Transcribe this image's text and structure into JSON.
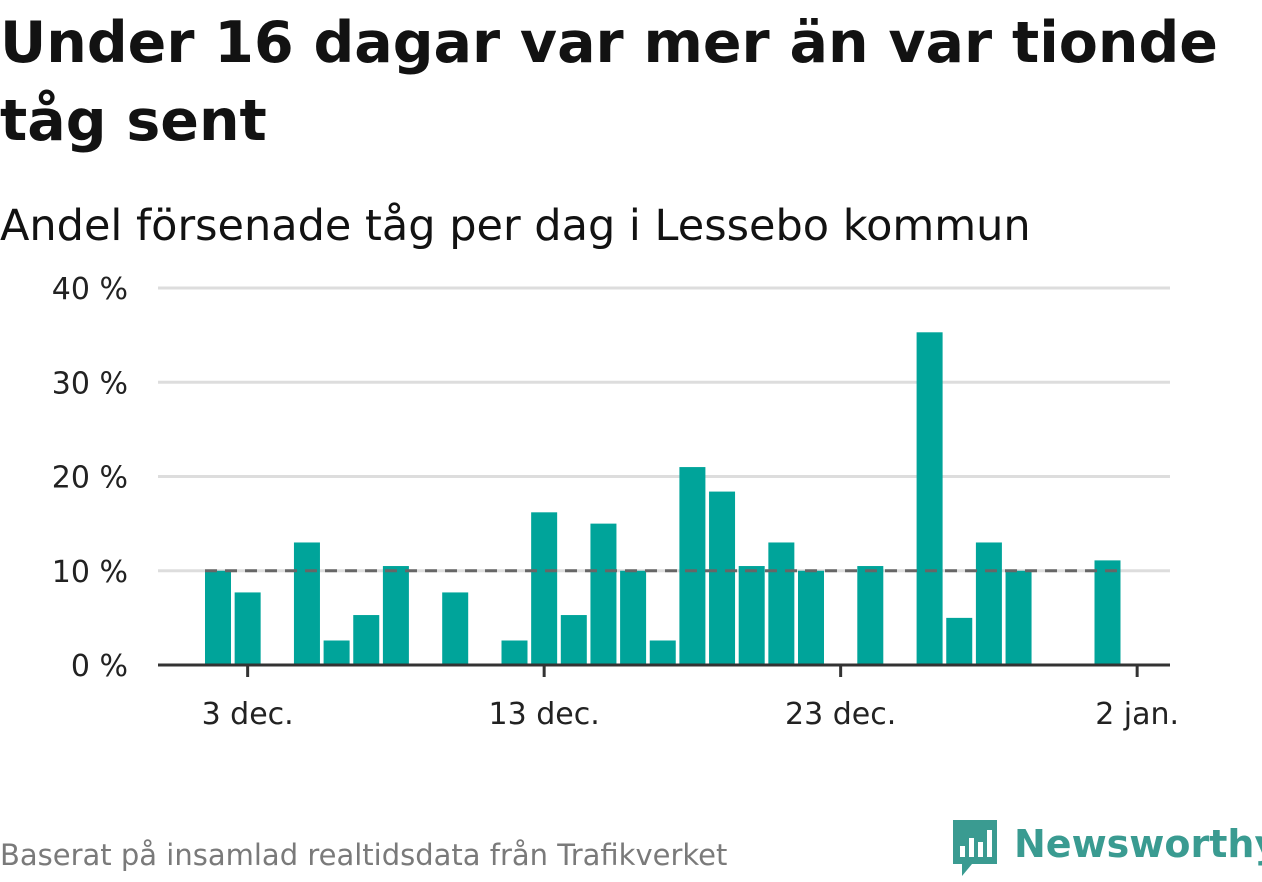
{
  "title": "Under 16 dagar var mer än var tionde tåg sent",
  "subtitle": "Andel försenade tåg per dag i Lessebo kommun",
  "footer": "Baserat på insamlad realtidsdata från Trafikverket",
  "brand": {
    "name": "Newsworthy",
    "icon": "newsworthy-logo-icon",
    "color": "#3a9b91"
  },
  "colors": {
    "bar": "#00a49a",
    "grid": "#dddddd",
    "axis": "#333333",
    "reference": "#666666"
  },
  "chart_data": {
    "type": "bar",
    "title": "Under 16 dagar var mer än var tionde tåg sent",
    "subtitle": "Andel försenade tåg per dag i Lessebo kommun",
    "xlabel": "",
    "ylabel": "",
    "unit": "%",
    "x_start": "2 dec.",
    "x": [
      "2 dec.",
      "3 dec.",
      "4 dec.",
      "5 dec.",
      "6 dec.",
      "7 dec.",
      "8 dec.",
      "9 dec.",
      "10 dec.",
      "11 dec.",
      "12 dec.",
      "13 dec.",
      "14 dec.",
      "15 dec.",
      "16 dec.",
      "17 dec.",
      "18 dec.",
      "19 dec.",
      "20 dec.",
      "21 dec.",
      "22 dec.",
      "23 dec.",
      "24 dec.",
      "25 dec.",
      "26 dec.",
      "27 dec.",
      "28 dec.",
      "29 dec.",
      "30 dec.",
      "31 dec.",
      "1 jan."
    ],
    "values": [
      10.0,
      7.7,
      null,
      13.0,
      2.6,
      5.3,
      10.5,
      null,
      7.7,
      null,
      2.6,
      16.2,
      5.3,
      15.0,
      10.0,
      2.6,
      21.0,
      18.4,
      10.5,
      13.0,
      10.0,
      null,
      10.5,
      null,
      35.3,
      5.0,
      13.0,
      10.0,
      null,
      null,
      11.1
    ],
    "reference_line": 10,
    "ylim": [
      0,
      40
    ],
    "yticks": [
      0,
      10,
      20,
      30,
      40
    ],
    "ytick_labels": [
      "0 %",
      "10 %",
      "20 %",
      "30 %",
      "40 %"
    ],
    "xtick_labels": [
      "3 dec.",
      "13 dec.",
      "23 dec.",
      "2 jan."
    ],
    "xtick_dates": [
      "3 dec.",
      "13 dec.",
      "23 dec.",
      "2 jan."
    ],
    "grid": true,
    "legend": "none"
  }
}
